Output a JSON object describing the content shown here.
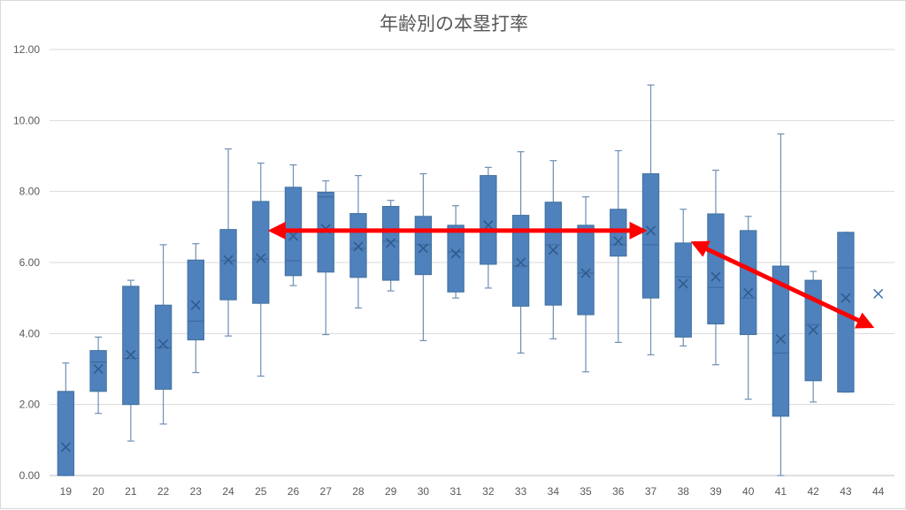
{
  "chart_data": {
    "type": "box",
    "title": "年齢別の本塁打率",
    "xlabel": "",
    "ylabel": "",
    "ylim": [
      0,
      12
    ],
    "yticks": [
      "0.00",
      "2.00",
      "4.00",
      "6.00",
      "8.00",
      "10.00",
      "12.00"
    ],
    "grid": true,
    "categories": [
      "19",
      "20",
      "21",
      "22",
      "23",
      "24",
      "25",
      "26",
      "27",
      "28",
      "29",
      "30",
      "31",
      "32",
      "33",
      "34",
      "35",
      "36",
      "37",
      "38",
      "39",
      "40",
      "41",
      "42",
      "43",
      "44"
    ],
    "series": [
      {
        "name": "本塁打率",
        "color": "#4f81bd",
        "boxes": [
          {
            "min": 0,
            "q1": 0,
            "median": 0,
            "q3": 2.37,
            "max": 3.17,
            "mean": 0.8
          },
          {
            "min": 1.75,
            "q1": 2.37,
            "median": 3.2,
            "q3": 3.52,
            "max": 3.9,
            "mean": 3.0
          },
          {
            "min": 0.97,
            "q1": 2.0,
            "median": 3.3,
            "q3": 5.33,
            "max": 5.5,
            "mean": 3.4
          },
          {
            "min": 1.45,
            "q1": 2.43,
            "median": 3.6,
            "q3": 4.8,
            "max": 6.5,
            "mean": 3.7
          },
          {
            "min": 2.9,
            "q1": 3.82,
            "median": 4.35,
            "q3": 6.07,
            "max": 6.53,
            "mean": 4.8
          },
          {
            "min": 3.93,
            "q1": 4.95,
            "median": 6.05,
            "q3": 6.93,
            "max": 9.2,
            "mean": 6.07
          },
          {
            "min": 2.8,
            "q1": 4.85,
            "median": 6.1,
            "q3": 7.72,
            "max": 8.8,
            "mean": 6.12
          },
          {
            "min": 5.35,
            "q1": 5.63,
            "median": 6.05,
            "q3": 8.12,
            "max": 8.75,
            "mean": 6.75
          },
          {
            "min": 3.97,
            "q1": 5.73,
            "median": 7.85,
            "q3": 7.98,
            "max": 8.3,
            "mean": 6.95
          },
          {
            "min": 4.72,
            "q1": 5.58,
            "median": 6.4,
            "q3": 7.38,
            "max": 8.45,
            "mean": 6.45
          },
          {
            "min": 5.2,
            "q1": 5.5,
            "median": 6.6,
            "q3": 7.58,
            "max": 7.75,
            "mean": 6.55
          },
          {
            "min": 3.8,
            "q1": 5.66,
            "median": 6.5,
            "q3": 7.3,
            "max": 8.5,
            "mean": 6.4
          },
          {
            "min": 5.0,
            "q1": 5.17,
            "median": 6.3,
            "q3": 7.05,
            "max": 7.6,
            "mean": 6.25
          },
          {
            "min": 5.28,
            "q1": 5.95,
            "median": 6.95,
            "q3": 8.45,
            "max": 8.68,
            "mean": 7.05
          },
          {
            "min": 3.45,
            "q1": 4.77,
            "median": 5.9,
            "q3": 7.33,
            "max": 9.12,
            "mean": 6.0
          },
          {
            "min": 3.85,
            "q1": 4.8,
            "median": 6.5,
            "q3": 7.7,
            "max": 8.87,
            "mean": 6.35
          },
          {
            "min": 2.92,
            "q1": 4.53,
            "median": 5.7,
            "q3": 7.05,
            "max": 7.85,
            "mean": 5.7
          },
          {
            "min": 3.75,
            "q1": 6.18,
            "median": 6.5,
            "q3": 7.5,
            "max": 9.15,
            "mean": 6.6
          },
          {
            "min": 3.4,
            "q1": 5.0,
            "median": 6.5,
            "q3": 8.5,
            "max": 11.0,
            "mean": 6.9
          },
          {
            "min": 3.65,
            "q1": 3.9,
            "median": 5.6,
            "q3": 6.55,
            "max": 7.5,
            "mean": 5.4
          },
          {
            "min": 3.12,
            "q1": 4.27,
            "median": 5.3,
            "q3": 7.37,
            "max": 8.6,
            "mean": 5.6
          },
          {
            "min": 2.15,
            "q1": 3.97,
            "median": 5.0,
            "q3": 6.9,
            "max": 7.3,
            "mean": 5.15
          },
          {
            "min": 0,
            "q1": 1.67,
            "median": 3.45,
            "q3": 5.9,
            "max": 9.62,
            "mean": 3.85
          },
          {
            "min": 2.07,
            "q1": 2.67,
            "median": 4.25,
            "q3": 5.5,
            "max": 5.75,
            "mean": 4.1
          },
          {
            "min": 2.35,
            "q1": 2.35,
            "median": 5.85,
            "q3": 6.85,
            "max": 6.85,
            "mean": 5.0
          },
          {
            "min": 5.12,
            "q1": 5.12,
            "median": 5.12,
            "q3": 5.12,
            "max": 5.12,
            "mean": 5.12
          }
        ]
      }
    ],
    "annotations": [
      {
        "type": "double-arrow",
        "color": "#ff0000",
        "from": {
          "category": "25",
          "value": 6.9
        },
        "to": {
          "category": "37",
          "value": 6.9
        }
      },
      {
        "type": "double-arrow",
        "color": "#ff0000",
        "from": {
          "category": "38",
          "value": 6.55
        },
        "to": {
          "category": "44",
          "value": 4.2
        }
      }
    ]
  }
}
